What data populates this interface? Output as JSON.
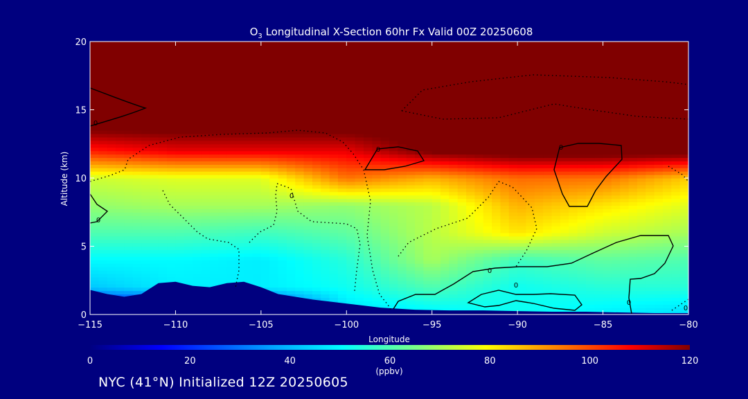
{
  "chart_data": {
    "type": "heatmap",
    "title_species": "O",
    "title_species_sub": "3",
    "title_rest": " Longitudinal X-Section 60hr  Fx Valid 00Z 20250608",
    "xlabel": "Longitude",
    "ylabel": "Altitude (km)",
    "xlim": [
      -115,
      -80
    ],
    "ylim": [
      0,
      20
    ],
    "xticks": [
      -115,
      -110,
      -105,
      -100,
      -95,
      -90,
      -85,
      -80
    ],
    "xtick_labels": [
      "−115",
      "−110",
      "−105",
      "−100",
      "−95",
      "−90",
      "−85",
      "−80"
    ],
    "yticks": [
      0,
      5,
      10,
      15,
      20
    ],
    "ytick_labels": [
      "0",
      "5",
      "10",
      "15",
      "20"
    ],
    "colorbar": {
      "min": 0,
      "max": 120,
      "ticks": [
        0,
        20,
        40,
        60,
        80,
        100,
        120
      ],
      "tick_labels": [
        "0",
        "20",
        "40",
        "60",
        "80",
        "100",
        "120"
      ],
      "unit": "(ppbv)"
    },
    "terrain_km": [
      [
        -115,
        1.8
      ],
      [
        -114,
        1.5
      ],
      [
        -113,
        1.3
      ],
      [
        -112,
        1.5
      ],
      [
        -111,
        2.3
      ],
      [
        -110,
        2.4
      ],
      [
        -109,
        2.1
      ],
      [
        -108,
        2.0
      ],
      [
        -107,
        2.3
      ],
      [
        -106,
        2.4
      ],
      [
        -105,
        2.0
      ],
      [
        -104,
        1.5
      ],
      [
        -102,
        1.1
      ],
      [
        -100,
        0.8
      ],
      [
        -98,
        0.5
      ],
      [
        -96,
        0.35
      ],
      [
        -94,
        0.3
      ],
      [
        -92,
        0.3
      ],
      [
        -90,
        0.25
      ],
      [
        -88,
        0.2
      ],
      [
        -86,
        0.2
      ],
      [
        -84,
        0.15
      ],
      [
        -82,
        0.1
      ],
      [
        -80,
        0.1
      ]
    ],
    "ozone_ppbv_grid": {
      "longitudes": [
        -115,
        -110,
        -105,
        -100,
        -95,
        -90,
        -85,
        -80
      ],
      "altitudes_km": [
        0,
        2,
        4,
        6,
        8,
        10,
        12,
        14,
        16,
        18,
        20
      ],
      "values": [
        [
          0,
          0,
          0,
          45,
          48,
          52,
          48,
          45
        ],
        [
          42,
          48,
          48,
          52,
          60,
          52,
          55,
          55
        ],
        [
          50,
          50,
          48,
          55,
          70,
          58,
          62,
          60
        ],
        [
          60,
          60,
          58,
          62,
          72,
          82,
          74,
          70
        ],
        [
          68,
          70,
          70,
          68,
          72,
          88,
          82,
          76
        ],
        [
          74,
          76,
          76,
          95,
          88,
          96,
          95,
          85
        ],
        [
          105,
          110,
          110,
          110,
          122,
          125,
          125,
          125
        ],
        [
          125,
          125,
          125,
          125,
          125,
          125,
          125,
          125
        ],
        [
          125,
          125,
          125,
          125,
          125,
          125,
          125,
          125
        ],
        [
          125,
          125,
          125,
          125,
          125,
          125,
          125,
          125
        ],
        [
          125,
          125,
          125,
          125,
          125,
          125,
          125,
          125
        ]
      ]
    },
    "contour_labels": [
      "0",
      "0",
      "0",
      "0",
      "0",
      "0",
      "0",
      "0",
      "0"
    ]
  },
  "footer": "NYC (41°N) Initialized 12Z 20250605"
}
